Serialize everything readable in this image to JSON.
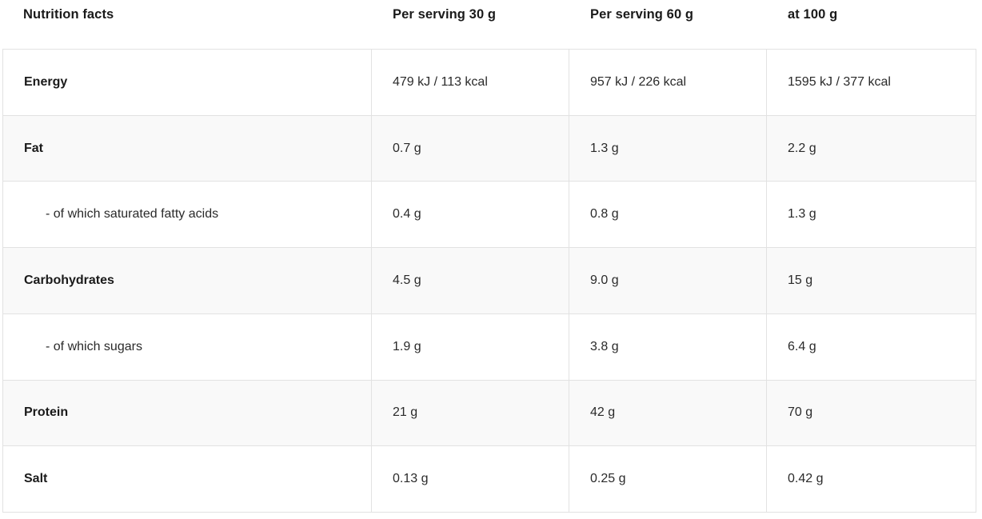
{
  "table": {
    "headers": [
      "Nutrition facts",
      "Per serving 30 g",
      "Per serving 60 g",
      "at 100 g"
    ],
    "rows": [
      {
        "label": "Energy",
        "indent": false,
        "values": [
          "479 kJ / 113 kcal",
          "957 kJ / 226 kcal",
          "1595 kJ / 377 kcal"
        ]
      },
      {
        "label": "Fat",
        "indent": false,
        "values": [
          "0.7 g",
          "1.3 g",
          "2.2 g"
        ]
      },
      {
        "label": "- of which saturated fatty acids",
        "indent": true,
        "values": [
          "0.4 g",
          "0.8 g",
          "1.3 g"
        ]
      },
      {
        "label": "Carbohydrates",
        "indent": false,
        "values": [
          "4.5 g",
          "9.0 g",
          "15 g"
        ]
      },
      {
        "label": "- of which sugars",
        "indent": true,
        "values": [
          "1.9 g",
          "3.8 g",
          "6.4 g"
        ]
      },
      {
        "label": "Protein",
        "indent": false,
        "values": [
          "21 g",
          "42 g",
          "70 g"
        ]
      },
      {
        "label": "Salt",
        "indent": false,
        "values": [
          "0.13 g",
          "0.25 g",
          "0.42 g"
        ]
      }
    ],
    "colors": {
      "row_stripe": "#f9f9f9",
      "border": "#e2e2e2",
      "heading_text": "#1a1a1a",
      "body_text": "#2a2a2a",
      "background": "#ffffff"
    }
  }
}
